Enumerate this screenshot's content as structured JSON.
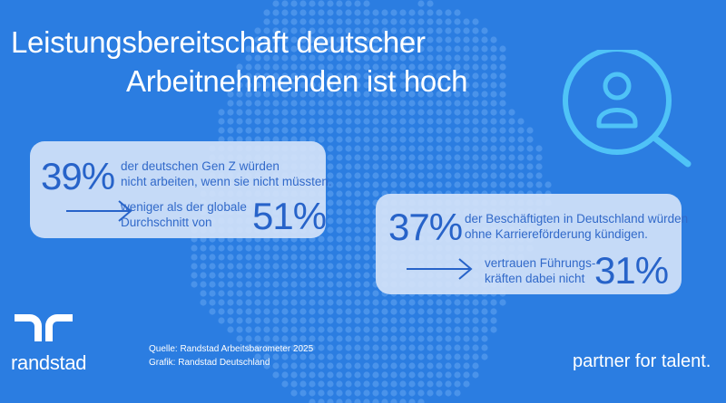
{
  "title": {
    "line1": "Leistungsbereitschaft deutscher",
    "line2": "Arbeitnehmenden ist hoch"
  },
  "card1": {
    "pct": "39%",
    "text_line1": "der  deutschen Gen Z würden",
    "text_line2": "nicht arbeiten, wenn sie nicht müssten.",
    "compare_line1": "weniger als der globale",
    "compare_line2": "Durchschnitt von",
    "compare_pct": "51%"
  },
  "card2": {
    "pct": "37%",
    "text_line1": "der Beschäftigten in Deutschland würden",
    "text_line2": "ohne Karriereförderung kündigen.",
    "compare_line1": "vertrauen Führungs-",
    "compare_line2": "kräften dabei nicht",
    "compare_pct": "31%"
  },
  "footer": {
    "source": "Quelle: Randstad Arbeitsbarometer 2025",
    "graphic": "Grafik: Randstad Deutschland"
  },
  "brand": {
    "name": "randstad",
    "tagline": "partner for talent."
  },
  "icons": {
    "search_user": "search-user-icon",
    "arrow": "arrow-right-icon",
    "logo": "randstad-logo-icon"
  },
  "colors": {
    "background": "#2b7de1",
    "card": "#d6e4fa",
    "accent_text": "#2763c9",
    "icon": "#4fc3f7"
  }
}
